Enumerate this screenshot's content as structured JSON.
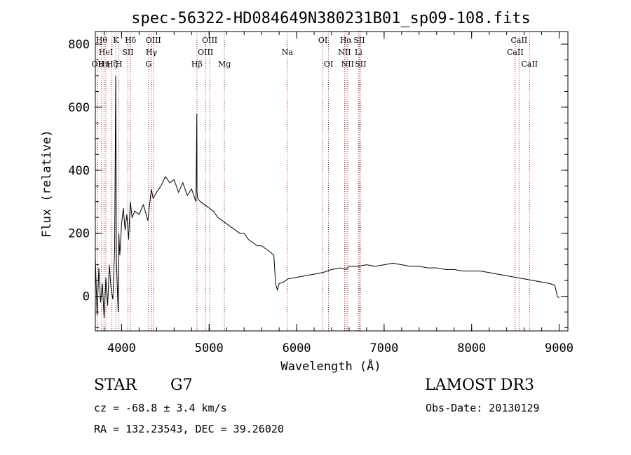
{
  "title": "spec-56322-HD084649N380231B01_sp09-108.fits",
  "info": {
    "class_label": "STAR",
    "subclass_label": "G7",
    "survey": "LAMOST DR3",
    "cz": "cz = -68.8 ± 3.4 km/s",
    "obs_date": "Obs-Date: 20130129",
    "radec": "RA = 132.23543, DEC =  39.26020"
  },
  "colors": {
    "spectrum": "#000000",
    "lines": "#b22222",
    "axes": "#000000"
  },
  "chart_data": {
    "type": "line",
    "xlabel": "Wavelength (Å)",
    "ylabel": "Flux (relative)",
    "xlim": [
      3700,
      9100
    ],
    "ylim": [
      -110,
      840
    ],
    "xticks": [
      4000,
      5000,
      6000,
      7000,
      8000,
      9000
    ],
    "yticks": [
      0,
      200,
      400,
      600,
      800
    ],
    "xtick_labels": [
      "4000",
      "5000",
      "6000",
      "7000",
      "8000",
      "9000"
    ],
    "ytick_labels": [
      "0",
      "200",
      "400",
      "600",
      "800"
    ],
    "series": [
      {
        "x": [
          3700,
          3720,
          3740,
          3760,
          3780,
          3800,
          3820,
          3840,
          3860,
          3880,
          3900,
          3920,
          3933,
          3940,
          3960,
          3968,
          3980,
          4000,
          4020,
          4040,
          4060,
          4080,
          4100,
          4120,
          4150,
          4200,
          4250,
          4300,
          4340,
          4360,
          4400,
          4450,
          4500,
          4550,
          4600,
          4650,
          4700,
          4750,
          4800,
          4850,
          4860,
          4862,
          4870,
          4900,
          4950,
          5000,
          5050,
          5100,
          5150,
          5200,
          5250,
          5300,
          5350,
          5400,
          5450,
          5500,
          5550,
          5600,
          5650,
          5700,
          5740,
          5760,
          5780,
          5800,
          5850,
          5900,
          6000,
          6100,
          6200,
          6300,
          6400,
          6500,
          6563,
          6600,
          6700,
          6800,
          6900,
          7000,
          7100,
          7200,
          7300,
          7400,
          7500,
          7600,
          7700,
          7800,
          7900,
          8000,
          8100,
          8200,
          8300,
          8400,
          8500,
          8600,
          8700,
          8800,
          8900,
          8950,
          8980,
          9000
        ],
        "y": [
          120,
          -60,
          90,
          -20,
          40,
          -70,
          60,
          -30,
          100,
          20,
          -10,
          150,
          700,
          120,
          -50,
          200,
          130,
          230,
          280,
          210,
          260,
          180,
          300,
          250,
          270,
          260,
          290,
          240,
          340,
          310,
          330,
          350,
          380,
          360,
          370,
          330,
          360,
          320,
          340,
          300,
          580,
          330,
          310,
          300,
          290,
          280,
          270,
          250,
          240,
          230,
          220,
          210,
          200,
          200,
          180,
          170,
          160,
          160,
          150,
          140,
          130,
          40,
          20,
          40,
          45,
          55,
          60,
          65,
          70,
          75,
          85,
          90,
          85,
          95,
          95,
          100,
          95,
          100,
          105,
          100,
          95,
          95,
          90,
          90,
          85,
          85,
          80,
          80,
          80,
          75,
          70,
          65,
          60,
          55,
          50,
          45,
          40,
          35,
          0,
          -5
        ]
      }
    ],
    "lines": [
      {
        "x": 3727,
        "label": "OII",
        "row": 3
      },
      {
        "x": 3771,
        "label": "Hθ",
        "row": 1
      },
      {
        "x": 3799,
        "label": "Hη",
        "row": 3
      },
      {
        "x": 3820,
        "label": "HeI",
        "row": 2
      },
      {
        "x": 3889,
        "label": "Hζ",
        "row": 3
      },
      {
        "x": 3934,
        "label": "K",
        "row": 1
      },
      {
        "x": 3969,
        "label": "H",
        "row": 3
      },
      {
        "x": 4072,
        "label": "SII",
        "row": 2
      },
      {
        "x": 4102,
        "label": "Hδ",
        "row": 1
      },
      {
        "x": 4308,
        "label": "G",
        "row": 3
      },
      {
        "x": 4341,
        "label": "Hγ",
        "row": 2
      },
      {
        "x": 4363,
        "label": "OIII",
        "row": 1
      },
      {
        "x": 4861,
        "label": "Hβ",
        "row": 3
      },
      {
        "x": 4959,
        "label": "OIII",
        "row": 2
      },
      {
        "x": 5007,
        "label": "OIII",
        "row": 1
      },
      {
        "x": 5175,
        "label": "Mg",
        "row": 3
      },
      {
        "x": 5894,
        "label": "Na",
        "row": 2
      },
      {
        "x": 6300,
        "label": "OI",
        "row": 1
      },
      {
        "x": 6364,
        "label": "OI",
        "row": 3
      },
      {
        "x": 6548,
        "label": "NII",
        "row": 2
      },
      {
        "x": 6563,
        "label": "Hα",
        "row": 1
      },
      {
        "x": 6583,
        "label": "NII",
        "row": 3
      },
      {
        "x": 6707,
        "label": "Li",
        "row": 2
      },
      {
        "x": 6716,
        "label": "SII",
        "row": 1
      },
      {
        "x": 6731,
        "label": "SII",
        "row": 3
      },
      {
        "x": 8498,
        "label": "CaII",
        "row": 2
      },
      {
        "x": 8542,
        "label": "CaII",
        "row": 1
      },
      {
        "x": 8662,
        "label": "CaII",
        "row": 3
      }
    ]
  }
}
